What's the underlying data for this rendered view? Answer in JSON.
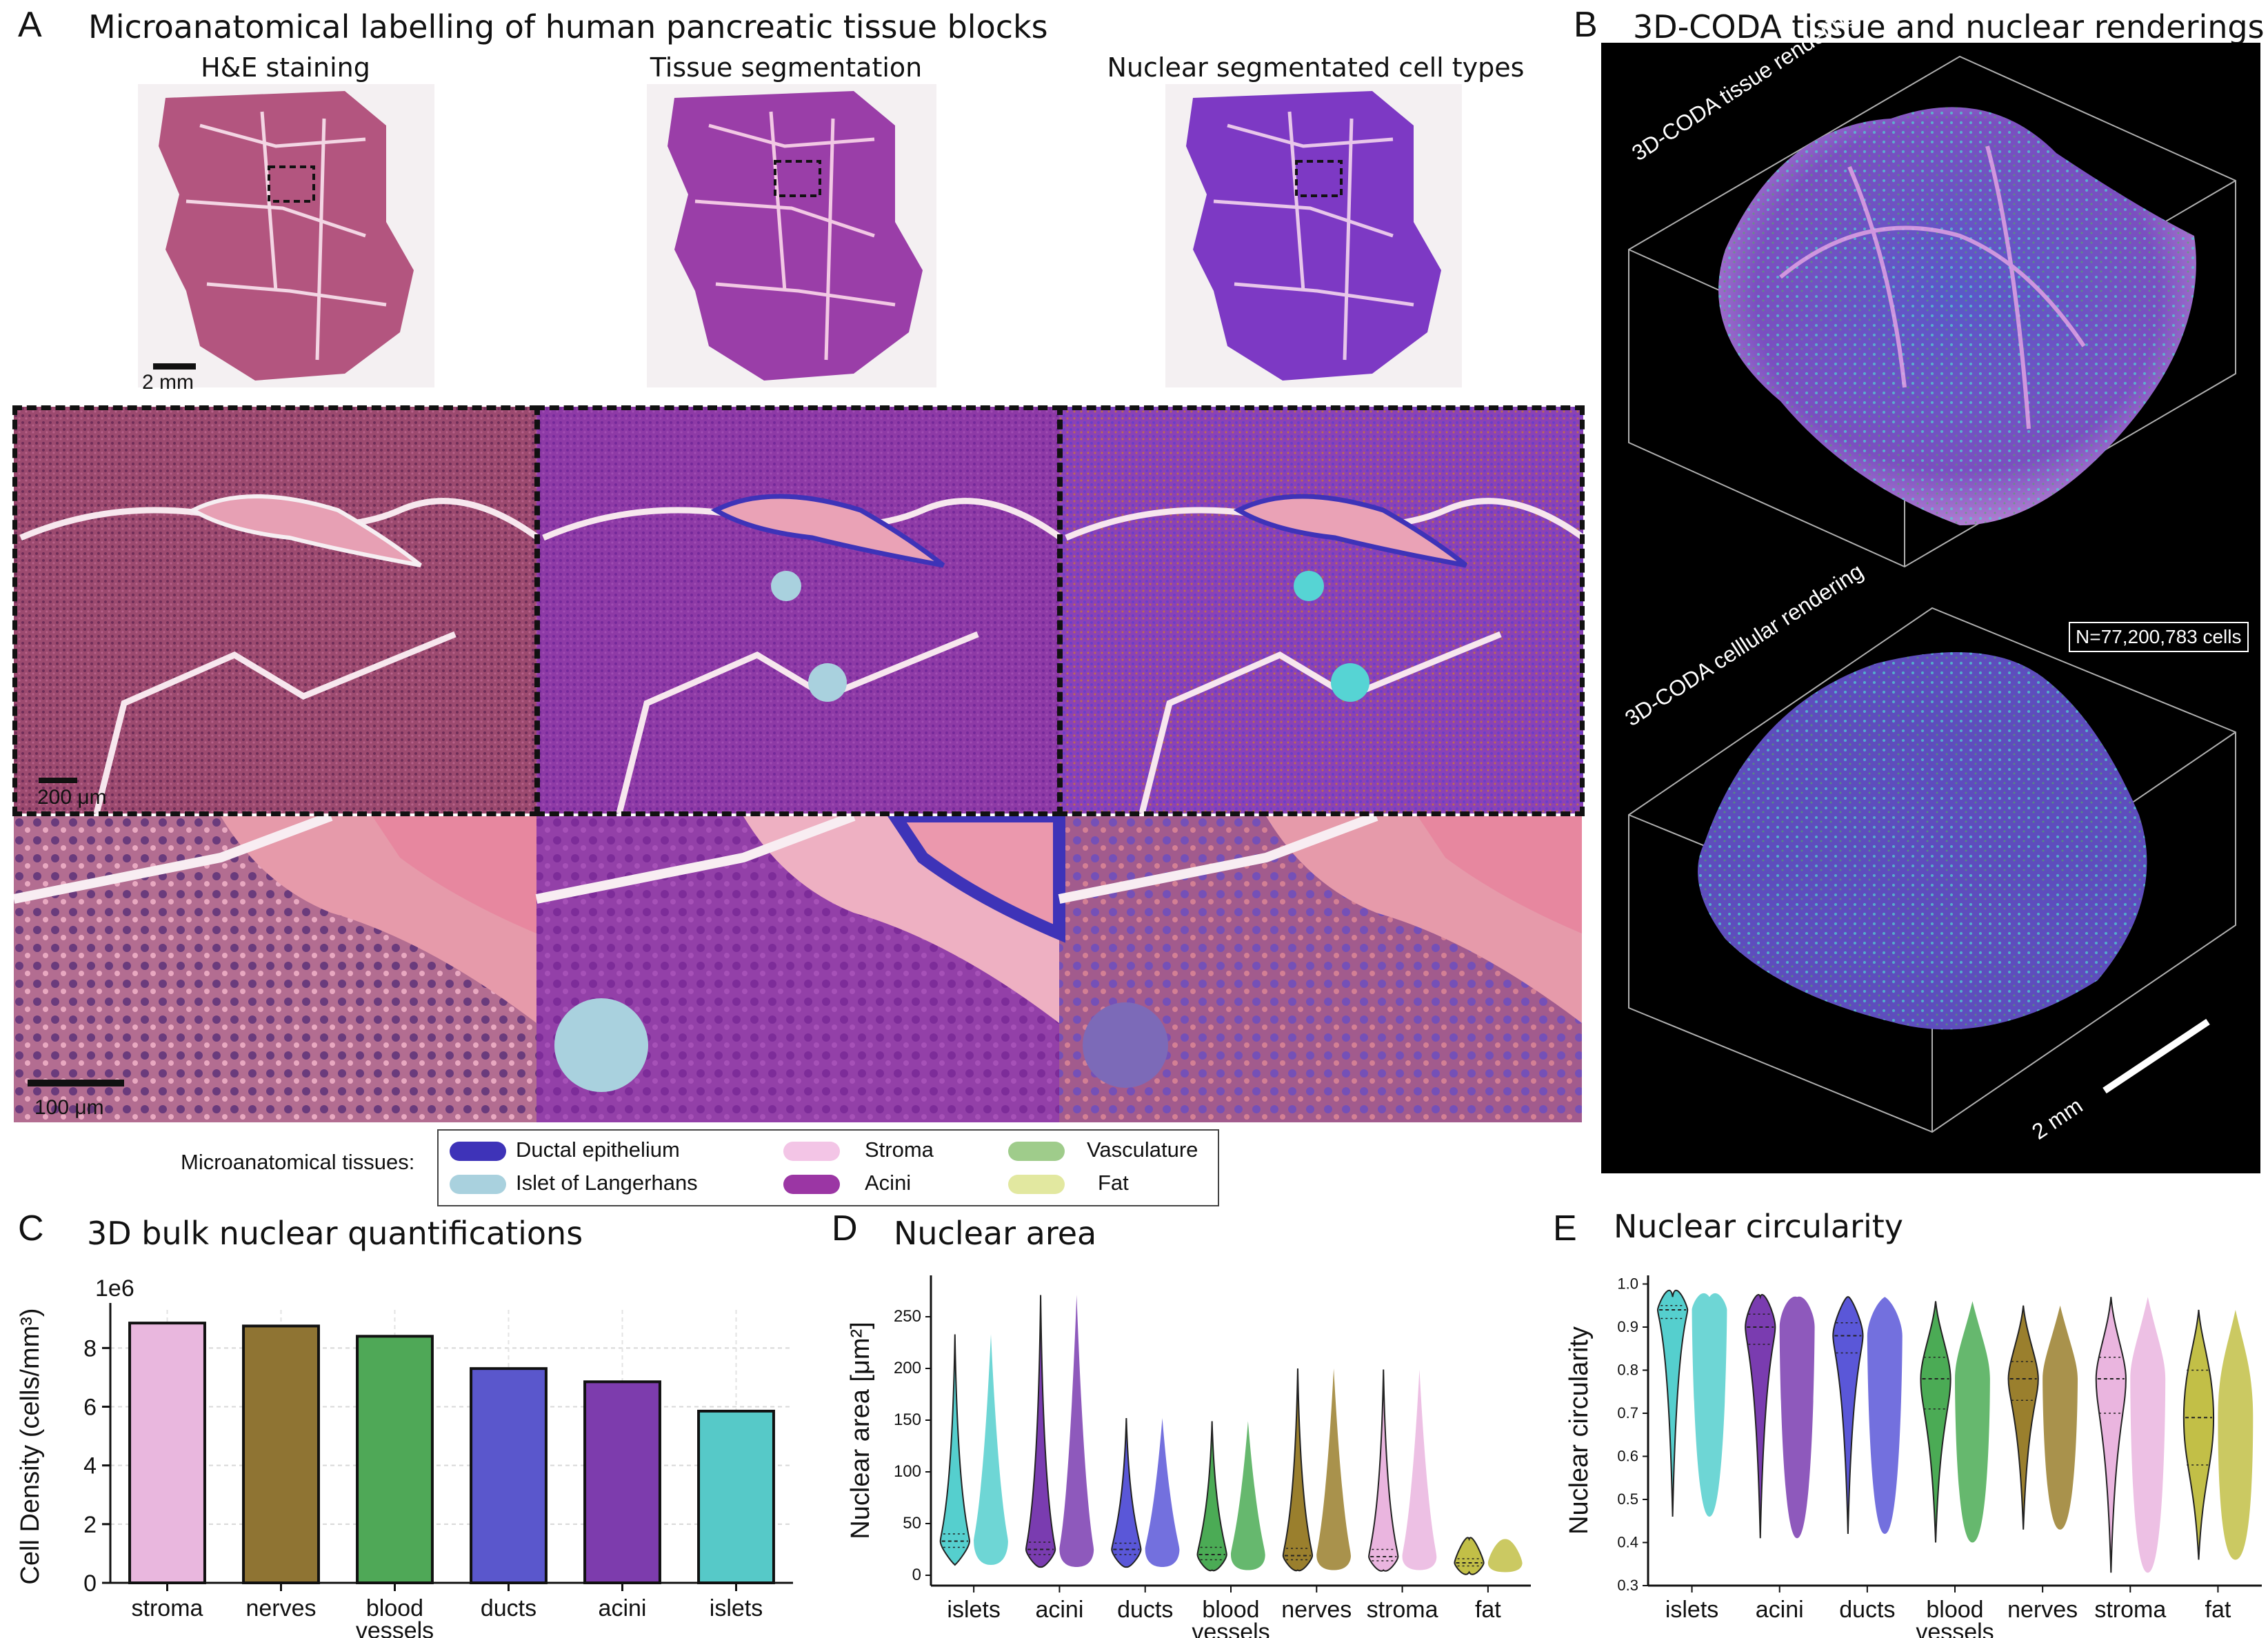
{
  "panel_A": {
    "letter": "A",
    "title": "Microanatomical labelling of human pancreatic tissue blocks",
    "col_titles": [
      "H&E staining",
      "Tissue segmentation",
      "Nuclear segmentated cell types"
    ],
    "scalebar_top": "2 mm",
    "scalebar_mid": "200 μm",
    "scalebar_bottom": "100 μm"
  },
  "panel_B": {
    "letter": "B",
    "title": "3D-CODA tissue and nuclear renderings",
    "tissue_label": "3D-CODA tissue rendering",
    "cell_label": "3D-CODA celllular rendering",
    "count": "N=77,200,783 cells",
    "scalebar": "2 mm"
  },
  "legend": {
    "heading": "Microanatomical tissues:",
    "items": [
      {
        "label": "Ductal epithelium",
        "color": "#3e33b8"
      },
      {
        "label": "Islet of Langerhans",
        "color": "#a9d1de"
      },
      {
        "label": "Stroma",
        "color": "#f3c5e6"
      },
      {
        "label": "Acini",
        "color": "#9b36a4"
      },
      {
        "label": "Vasculature",
        "color": "#9fcc8b"
      },
      {
        "label": "Fat",
        "color": "#e2e8a0"
      }
    ]
  },
  "panel_C": {
    "letter": "C",
    "title": "3D bulk nuclear quantifications"
  },
  "panel_D": {
    "letter": "D",
    "title": "Nuclear area"
  },
  "panel_E": {
    "letter": "E",
    "title": "Nuclear circularity"
  },
  "chart_data": [
    {
      "type": "bar",
      "title": "3D bulk nuclear quantifications",
      "ylabel": "Cell Density (cells/mm³)",
      "offset_label": "1e6",
      "categories": [
        "stroma",
        "nerves",
        "blood\nvessels",
        "ducts",
        "acini",
        "islets"
      ],
      "values": [
        8.85,
        8.75,
        8.4,
        7.3,
        6.85,
        5.85
      ],
      "colors": [
        "#e9b7de",
        "#8f7433",
        "#4fa857",
        "#5a57cc",
        "#7d3cad",
        "#56c9c8"
      ],
      "ylim": [
        0,
        9.3
      ],
      "yticks": [
        0,
        2,
        4,
        6,
        8
      ],
      "grid": true
    },
    {
      "type": "violin",
      "title": "Nuclear area",
      "ylabel": "Nuclear area [μm²]",
      "categories": [
        "islets",
        "acini",
        "ducts",
        "blood\nvessels",
        "nerves",
        "stroma",
        "fat"
      ],
      "yticks": [
        0,
        50,
        100,
        150,
        200,
        250
      ],
      "ylim": [
        -10,
        290
      ],
      "series": [
        {
          "category": "islets",
          "min": 10,
          "q1": 27,
          "median": 33,
          "q3": 40,
          "max": 233,
          "color": "#55cfce"
        },
        {
          "category": "acini",
          "min": 8,
          "q1": 20,
          "median": 25,
          "q3": 32,
          "max": 271,
          "color": "#7a3cb0"
        },
        {
          "category": "ducts",
          "min": 8,
          "q1": 20,
          "median": 25,
          "q3": 31,
          "max": 152,
          "color": "#5a57d8"
        },
        {
          "category": "blood vessels",
          "min": 5,
          "q1": 15,
          "median": 20,
          "q3": 27,
          "max": 149,
          "color": "#4bab55"
        },
        {
          "category": "nerves",
          "min": 5,
          "q1": 15,
          "median": 19,
          "q3": 26,
          "max": 200,
          "color": "#9a7f2d"
        },
        {
          "category": "stroma",
          "min": 5,
          "q1": 14,
          "median": 18,
          "q3": 25,
          "max": 199,
          "color": "#eab5df"
        },
        {
          "category": "fat",
          "min": 3,
          "q1": 9,
          "median": 12,
          "q3": 16,
          "max": 35,
          "color": "#c2bf47"
        }
      ]
    },
    {
      "type": "violin",
      "title": "Nuclear circularity",
      "ylabel": "Nuclear circularity",
      "categories": [
        "islets",
        "acini",
        "ducts",
        "blood\nvessels",
        "nerves",
        "stroma",
        "fat"
      ],
      "yticks": [
        0.3,
        0.4,
        0.5,
        0.6,
        0.7,
        0.8,
        0.9,
        1.0
      ],
      "ylim": [
        0.3,
        1.02
      ],
      "series": [
        {
          "category": "islets",
          "min": 0.46,
          "q1": 0.92,
          "median": 0.94,
          "q3": 0.95,
          "max": 0.97,
          "color": "#55cfce"
        },
        {
          "category": "acini",
          "min": 0.41,
          "q1": 0.86,
          "median": 0.9,
          "q3": 0.93,
          "max": 0.97,
          "color": "#7a3cb0"
        },
        {
          "category": "ducts",
          "min": 0.42,
          "q1": 0.84,
          "median": 0.88,
          "q3": 0.91,
          "max": 0.97,
          "color": "#5a57d8"
        },
        {
          "category": "blood vessels",
          "min": 0.4,
          "q1": 0.71,
          "median": 0.78,
          "q3": 0.83,
          "max": 0.96,
          "color": "#4bab55"
        },
        {
          "category": "nerves",
          "min": 0.43,
          "q1": 0.73,
          "median": 0.78,
          "q3": 0.82,
          "max": 0.95,
          "color": "#9a7f2d"
        },
        {
          "category": "stroma",
          "min": 0.33,
          "q1": 0.7,
          "median": 0.78,
          "q3": 0.83,
          "max": 0.97,
          "color": "#eab5df"
        },
        {
          "category": "fat",
          "min": 0.36,
          "q1": 0.58,
          "median": 0.69,
          "q3": 0.8,
          "max": 0.94,
          "color": "#c2bf47"
        }
      ]
    }
  ]
}
